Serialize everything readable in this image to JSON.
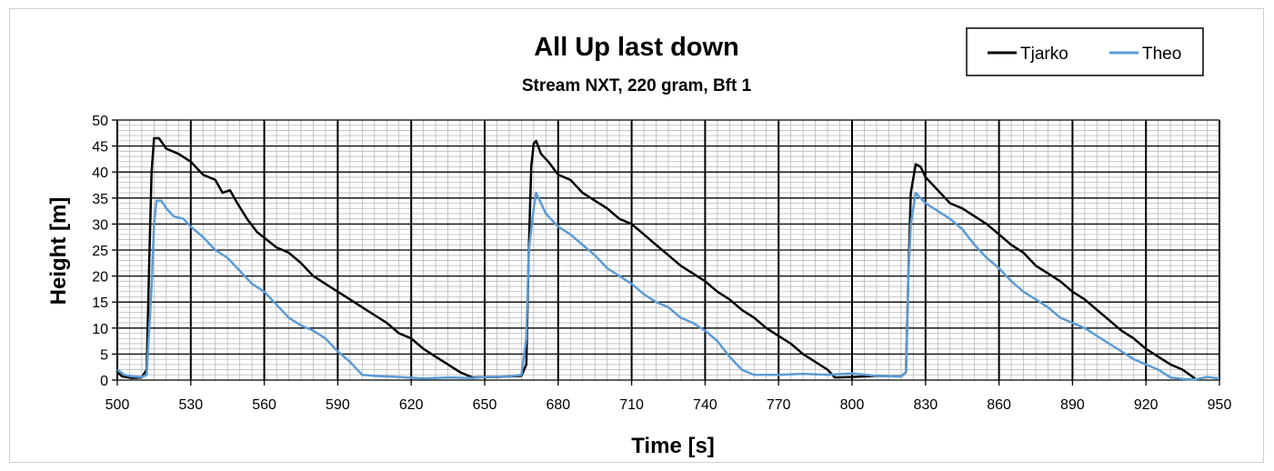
{
  "chart_data": {
    "type": "line",
    "title": "All Up last down",
    "subtitle": "Stream NXT, 220 gram, Bft 1",
    "xlabel": "Time [s]",
    "ylabel": "Height [m]",
    "xlim": [
      500,
      950
    ],
    "ylim": [
      0,
      50
    ],
    "x_ticks": [
      500,
      530,
      560,
      590,
      620,
      650,
      680,
      710,
      740,
      770,
      800,
      830,
      860,
      890,
      920,
      950
    ],
    "y_ticks": [
      0,
      5,
      10,
      15,
      20,
      25,
      30,
      35,
      40,
      45,
      50
    ],
    "grid": true,
    "legend_position": "top-right",
    "series": [
      {
        "name": "Tjarko",
        "color": "#000000",
        "points": [
          [
            500,
            1.5
          ],
          [
            502,
            0.7
          ],
          [
            506,
            0.4
          ],
          [
            510,
            0.5
          ],
          [
            512,
            2
          ],
          [
            513,
            22
          ],
          [
            514,
            40
          ],
          [
            515,
            46.5
          ],
          [
            517,
            46.5
          ],
          [
            520,
            44.5
          ],
          [
            525,
            43.5
          ],
          [
            530,
            42
          ],
          [
            535,
            39.5
          ],
          [
            540,
            38.5
          ],
          [
            543,
            36
          ],
          [
            546,
            36.5
          ],
          [
            549,
            34
          ],
          [
            553,
            31
          ],
          [
            557,
            28.5
          ],
          [
            561,
            27
          ],
          [
            565,
            25.5
          ],
          [
            570,
            24.5
          ],
          [
            575,
            22.5
          ],
          [
            580,
            20
          ],
          [
            585,
            18.5
          ],
          [
            590,
            17
          ],
          [
            595,
            15.5
          ],
          [
            600,
            14
          ],
          [
            605,
            12.5
          ],
          [
            610,
            11
          ],
          [
            615,
            9
          ],
          [
            620,
            8
          ],
          [
            625,
            6
          ],
          [
            630,
            4.5
          ],
          [
            635,
            3
          ],
          [
            640,
            1.5
          ],
          [
            645,
            0.5
          ],
          [
            650,
            0.6
          ],
          [
            655,
            0.6
          ],
          [
            660,
            0.7
          ],
          [
            665,
            0.8
          ],
          [
            667,
            3
          ],
          [
            668,
            25
          ],
          [
            669,
            41
          ],
          [
            670,
            45.5
          ],
          [
            671,
            46
          ],
          [
            673,
            43.5
          ],
          [
            676,
            42
          ],
          [
            680,
            39.5
          ],
          [
            685,
            38.5
          ],
          [
            690,
            36
          ],
          [
            695,
            34.5
          ],
          [
            700,
            33
          ],
          [
            705,
            31
          ],
          [
            710,
            30
          ],
          [
            715,
            28
          ],
          [
            720,
            26
          ],
          [
            725,
            24
          ],
          [
            730,
            22
          ],
          [
            735,
            20.5
          ],
          [
            740,
            19
          ],
          [
            745,
            17
          ],
          [
            750,
            15.5
          ],
          [
            755,
            13.5
          ],
          [
            760,
            12
          ],
          [
            765,
            10
          ],
          [
            770,
            8.5
          ],
          [
            775,
            7
          ],
          [
            780,
            5
          ],
          [
            785,
            3.5
          ],
          [
            790,
            2
          ],
          [
            793,
            0.5
          ],
          [
            800,
            0.6
          ],
          [
            810,
            0.8
          ],
          [
            820,
            0.7
          ],
          [
            822,
            1.5
          ],
          [
            823,
            20
          ],
          [
            824,
            36
          ],
          [
            826,
            41.5
          ],
          [
            828,
            41
          ],
          [
            830,
            39
          ],
          [
            835,
            36.5
          ],
          [
            840,
            34
          ],
          [
            845,
            33
          ],
          [
            850,
            31.5
          ],
          [
            855,
            30
          ],
          [
            860,
            28
          ],
          [
            865,
            26
          ],
          [
            870,
            24.5
          ],
          [
            875,
            22
          ],
          [
            880,
            20.5
          ],
          [
            885,
            19
          ],
          [
            890,
            17
          ],
          [
            895,
            15.5
          ],
          [
            900,
            13.5
          ],
          [
            905,
            11.5
          ],
          [
            910,
            9.5
          ],
          [
            915,
            8
          ],
          [
            920,
            6
          ],
          [
            925,
            4.5
          ],
          [
            930,
            3
          ],
          [
            935,
            2
          ],
          [
            940,
            0.3
          ]
        ]
      },
      {
        "name": "Theo",
        "color": "#5b9bd5",
        "points": [
          [
            500,
            2
          ],
          [
            503,
            1
          ],
          [
            506,
            0.7
          ],
          [
            510,
            0.6
          ],
          [
            512,
            1
          ],
          [
            514,
            18
          ],
          [
            515,
            30
          ],
          [
            516,
            34.5
          ],
          [
            518,
            34.5
          ],
          [
            520,
            33
          ],
          [
            523,
            31.5
          ],
          [
            527,
            31
          ],
          [
            530,
            29.5
          ],
          [
            535,
            27.5
          ],
          [
            540,
            25
          ],
          [
            545,
            23.5
          ],
          [
            550,
            21
          ],
          [
            555,
            18.5
          ],
          [
            560,
            17
          ],
          [
            565,
            14.5
          ],
          [
            570,
            12
          ],
          [
            575,
            10.5
          ],
          [
            580,
            9.5
          ],
          [
            585,
            8
          ],
          [
            590,
            5.5
          ],
          [
            595,
            3.5
          ],
          [
            600,
            1
          ],
          [
            605,
            0.8
          ],
          [
            615,
            0.6
          ],
          [
            625,
            0.3
          ],
          [
            635,
            0.5
          ],
          [
            645,
            0.4
          ],
          [
            650,
            0.6
          ],
          [
            660,
            0.7
          ],
          [
            665,
            1
          ],
          [
            667,
            8
          ],
          [
            668,
            25
          ],
          [
            670,
            33
          ],
          [
            671,
            36
          ],
          [
            673,
            34
          ],
          [
            675,
            32
          ],
          [
            680,
            29.5
          ],
          [
            685,
            28
          ],
          [
            690,
            26
          ],
          [
            695,
            24
          ],
          [
            700,
            21.5
          ],
          [
            705,
            20
          ],
          [
            710,
            18.5
          ],
          [
            715,
            16.5
          ],
          [
            720,
            15
          ],
          [
            725,
            14
          ],
          [
            730,
            12
          ],
          [
            735,
            11
          ],
          [
            740,
            9.5
          ],
          [
            745,
            7.5
          ],
          [
            750,
            4.5
          ],
          [
            755,
            2
          ],
          [
            760,
            1
          ],
          [
            770,
            1
          ],
          [
            780,
            1.2
          ],
          [
            790,
            1
          ],
          [
            800,
            1.3
          ],
          [
            810,
            0.8
          ],
          [
            820,
            0.7
          ],
          [
            822,
            1.5
          ],
          [
            823,
            20
          ],
          [
            824,
            30
          ],
          [
            826,
            36
          ],
          [
            828,
            35
          ],
          [
            830,
            34
          ],
          [
            835,
            32.5
          ],
          [
            840,
            31
          ],
          [
            845,
            29
          ],
          [
            850,
            26
          ],
          [
            855,
            23.5
          ],
          [
            860,
            21.5
          ],
          [
            865,
            19
          ],
          [
            870,
            17
          ],
          [
            875,
            15.5
          ],
          [
            880,
            14
          ],
          [
            885,
            12
          ],
          [
            890,
            11
          ],
          [
            895,
            10
          ],
          [
            900,
            8.5
          ],
          [
            905,
            7
          ],
          [
            910,
            5.5
          ],
          [
            915,
            4
          ],
          [
            920,
            3
          ],
          [
            925,
            2
          ],
          [
            930,
            0.5
          ],
          [
            935,
            0.2
          ],
          [
            940,
            0.1
          ],
          [
            945,
            0.6
          ],
          [
            950,
            0.3
          ]
        ]
      }
    ]
  }
}
